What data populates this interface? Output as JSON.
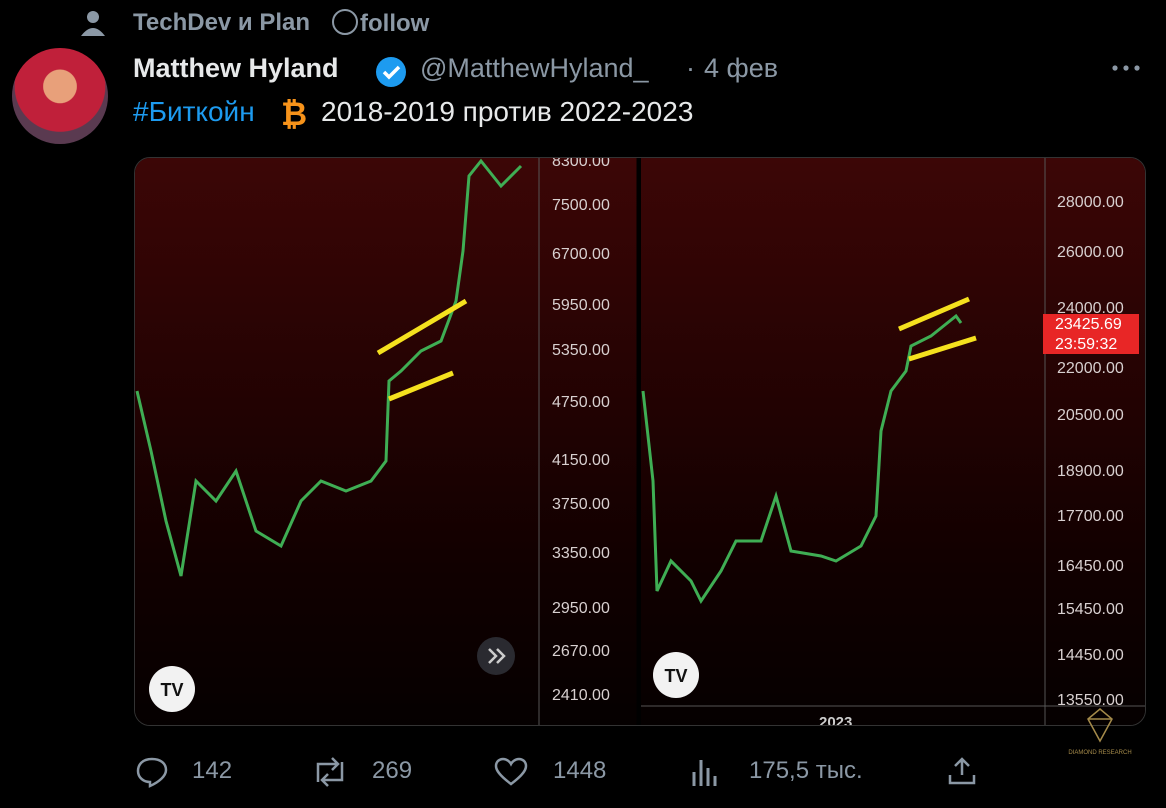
{
  "context": {
    "icon": "person",
    "text": "TechDev и Plan",
    "follow": "follow"
  },
  "tweet": {
    "author": "Matthew Hyland",
    "handle": "@MatthewHyland_",
    "date": "4 фев",
    "hashtag": "#Биткойн",
    "text": "2018-2019 против 2022-2023",
    "image": {
      "left_axis": [
        "8300.00",
        "7500.00",
        "6700.00",
        "5950.00",
        "5350.00",
        "4750.00",
        "4150.00",
        "3750.00",
        "3350.00",
        "2950.00",
        "2670.00",
        "2410.00"
      ],
      "right_axis": [
        "28000.00",
        "26000.00",
        "24000.00",
        "22000.00",
        "20500.00",
        "18900.00",
        "17700.00",
        "16450.00",
        "15450.00",
        "14450.00",
        "13550.00"
      ],
      "price_tag": "23425.69",
      "countdown": "23:59:32",
      "x_label": "2023",
      "watermark": "DIAMOND RESEARCH"
    },
    "actions": {
      "replies": "142",
      "reposts": "269",
      "likes": "1448",
      "views": "175,5 тыс."
    }
  }
}
